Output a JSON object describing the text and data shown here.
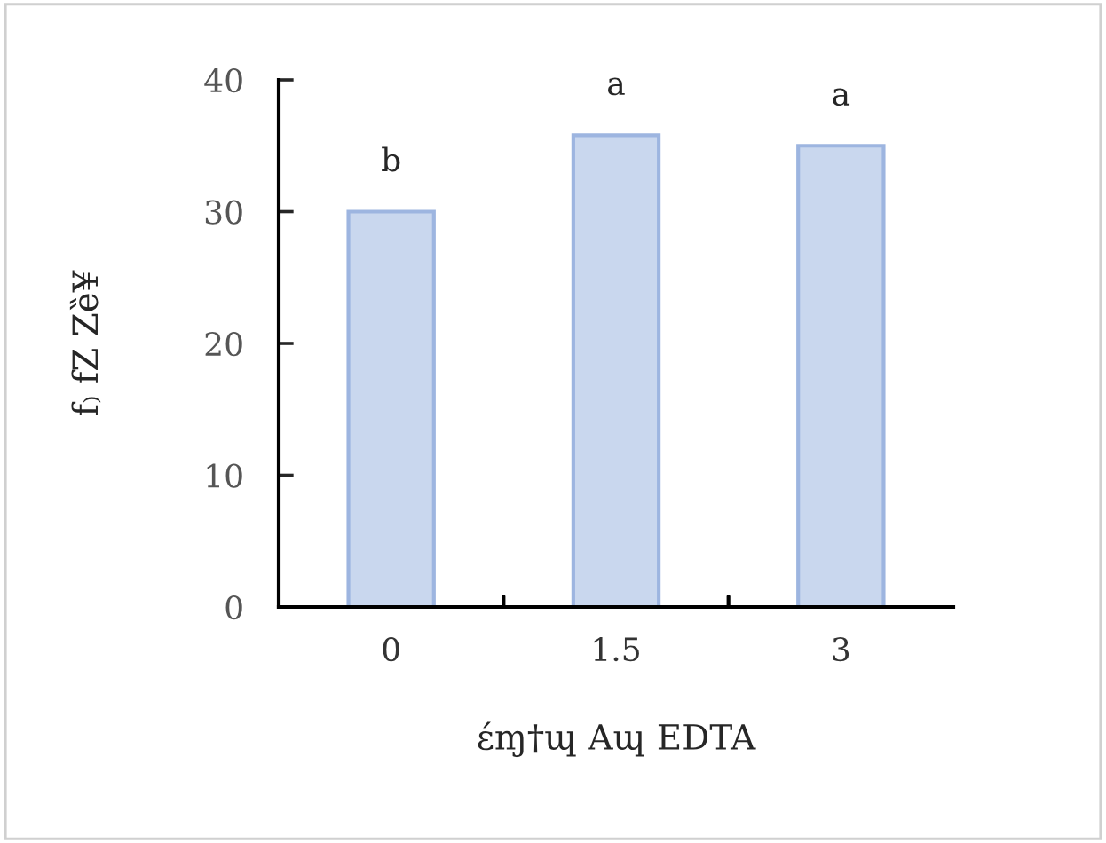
{
  "chart_data": {
    "type": "bar",
    "xlabel": "έɱ†ɰ Aɰ EDTA",
    "ylabel": "f₎ fZ Zȅ¥",
    "categories": [
      "0",
      "1.5",
      "3"
    ],
    "values": [
      30.0,
      35.8,
      35.0
    ],
    "color": "#c9d7ee",
    "ylim": [
      0,
      40
    ],
    "yticks": [
      0,
      10,
      20,
      30,
      40
    ],
    "grid": false,
    "annotations": [
      {
        "text": "b",
        "x": "0",
        "y": 30.0
      },
      {
        "text": "a",
        "x": "1.5",
        "y": 35.8
      },
      {
        "text": "a",
        "x": "3",
        "y": 35.0
      }
    ]
  }
}
